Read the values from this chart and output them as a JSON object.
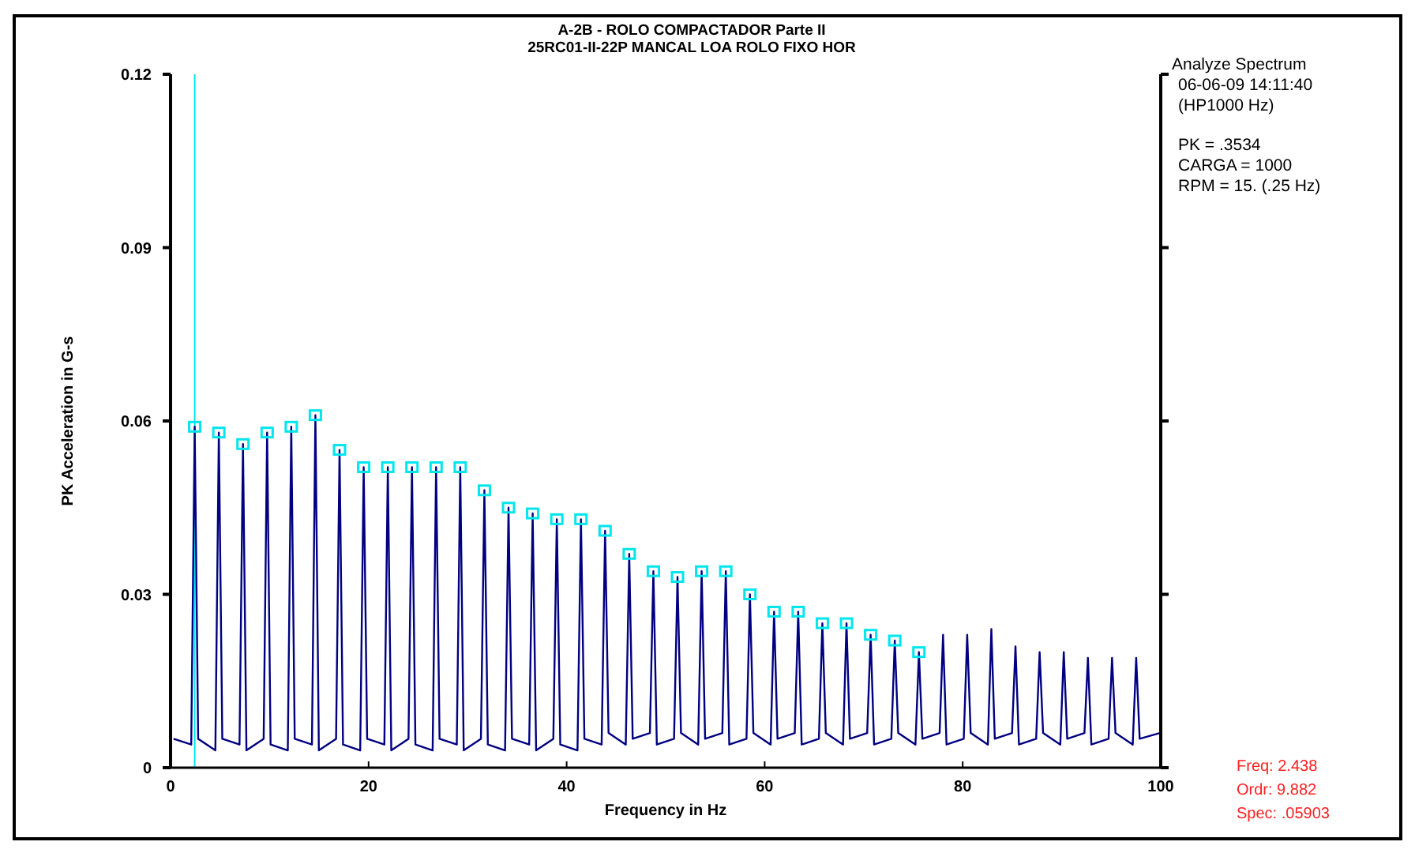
{
  "chart_data": {
    "type": "line",
    "title": "A-2B - ROLO COMPACTADOR Parte II",
    "subtitle": "25RC01-II-22P MANCAL LOA ROLO FIXO HOR",
    "xlabel": "Frequency in Hz",
    "ylabel": "PK Acceleration in G-s",
    "xlim": [
      0,
      100
    ],
    "xticks": [
      0,
      20,
      40,
      60,
      80,
      100
    ],
    "ylim": [
      0,
      0.12
    ],
    "yticks": [
      0,
      0.03,
      0.06,
      0.09,
      0.12
    ],
    "grid": false,
    "annotations": [
      "Analyze Spectrum",
      "06-06-09 14:11:40",
      "(HP1000 Hz)",
      "PK = .3534",
      "CARGA = 1000",
      "RPM = 15. (.25 Hz)",
      "Freq: 2.438",
      "Ordr: 9.882",
      "Spec: .05903"
    ],
    "ref_lines": [
      {
        "axis": "x",
        "value": 2.438,
        "color": "#00e5ee"
      }
    ],
    "series": [
      {
        "color": "#000080",
        "marker": "none",
        "x": [
          0.3,
          2.088,
          2.438,
          2.788,
          4.526,
          4.876,
          5.226,
          6.964,
          7.314,
          7.664,
          9.402,
          9.752,
          10.102,
          11.84,
          12.19,
          12.54,
          14.278,
          14.628,
          14.978,
          16.716,
          17.066,
          17.416,
          19.154,
          19.504,
          19.854,
          21.592,
          21.942,
          22.292,
          24.03,
          24.38,
          24.73,
          26.468,
          26.818,
          27.168,
          28.906,
          29.256,
          29.606,
          31.344,
          31.694,
          32.044,
          33.782,
          34.132,
          34.482,
          36.22,
          36.57,
          36.92,
          38.658,
          39.008,
          39.358,
          41.096,
          41.446,
          41.796,
          43.534,
          43.884,
          44.234,
          45.972,
          46.322,
          46.672,
          48.41,
          48.76,
          49.11,
          50.848,
          51.198,
          51.548,
          53.286,
          53.636,
          53.986,
          55.724,
          56.074,
          56.424,
          58.162,
          58.512,
          58.862,
          60.6,
          60.95,
          61.3,
          63.038,
          63.388,
          63.738,
          65.476,
          65.826,
          66.176,
          67.914,
          68.264,
          68.614,
          70.352,
          70.702,
          71.052,
          72.79,
          73.14,
          73.49,
          75.228,
          75.578,
          75.928,
          77.666,
          78.016,
          78.366,
          80.104,
          80.454,
          80.804,
          82.542,
          82.892,
          83.242,
          84.98,
          85.33,
          85.68,
          87.418,
          87.768,
          88.118,
          89.856,
          90.206,
          90.556,
          92.294,
          92.644,
          92.994,
          94.732,
          95.082,
          95.432,
          97.17,
          97.52,
          97.87,
          99.9
        ],
        "values": [
          0.005,
          0.004,
          0.059,
          0.005,
          0.003,
          0.058,
          0.005,
          0.004,
          0.056,
          0.003,
          0.005,
          0.058,
          0.004,
          0.003,
          0.059,
          0.005,
          0.004,
          0.061,
          0.003,
          0.005,
          0.055,
          0.004,
          0.003,
          0.052,
          0.005,
          0.004,
          0.052,
          0.003,
          0.005,
          0.052,
          0.004,
          0.003,
          0.052,
          0.005,
          0.004,
          0.052,
          0.003,
          0.005,
          0.048,
          0.004,
          0.003,
          0.045,
          0.005,
          0.004,
          0.044,
          0.003,
          0.005,
          0.043,
          0.004,
          0.003,
          0.043,
          0.005,
          0.004,
          0.041,
          0.006,
          0.004,
          0.037,
          0.005,
          0.006,
          0.034,
          0.004,
          0.005,
          0.033,
          0.006,
          0.004,
          0.034,
          0.005,
          0.006,
          0.034,
          0.004,
          0.005,
          0.03,
          0.006,
          0.004,
          0.027,
          0.005,
          0.006,
          0.027,
          0.004,
          0.005,
          0.025,
          0.006,
          0.004,
          0.025,
          0.005,
          0.006,
          0.023,
          0.004,
          0.005,
          0.022,
          0.006,
          0.004,
          0.02,
          0.005,
          0.006,
          0.023,
          0.004,
          0.005,
          0.023,
          0.006,
          0.004,
          0.024,
          0.005,
          0.006,
          0.021,
          0.004,
          0.005,
          0.02,
          0.006,
          0.004,
          0.02,
          0.005,
          0.006,
          0.019,
          0.004,
          0.005,
          0.019,
          0.006,
          0.004,
          0.019,
          0.005,
          0.006
        ]
      },
      {
        "type": "scatter",
        "color": "#00e5ee",
        "marker": "square",
        "x": [
          2.438,
          4.876,
          7.314,
          9.752,
          12.19,
          14.628,
          17.066,
          19.504,
          21.942,
          24.38,
          26.818,
          29.256,
          31.694,
          34.132,
          36.57,
          39.008,
          41.446,
          43.884,
          46.322,
          48.76,
          51.198,
          53.636,
          56.074,
          58.512,
          60.95,
          63.388,
          65.826,
          68.264,
          70.702,
          73.14,
          75.578
        ],
        "values": [
          0.059,
          0.058,
          0.056,
          0.058,
          0.059,
          0.061,
          0.055,
          0.052,
          0.052,
          0.052,
          0.052,
          0.052,
          0.048,
          0.045,
          0.044,
          0.043,
          0.043,
          0.041,
          0.037,
          0.034,
          0.033,
          0.034,
          0.034,
          0.03,
          0.027,
          0.027,
          0.025,
          0.025,
          0.023,
          0.022,
          0.02
        ]
      }
    ]
  }
}
